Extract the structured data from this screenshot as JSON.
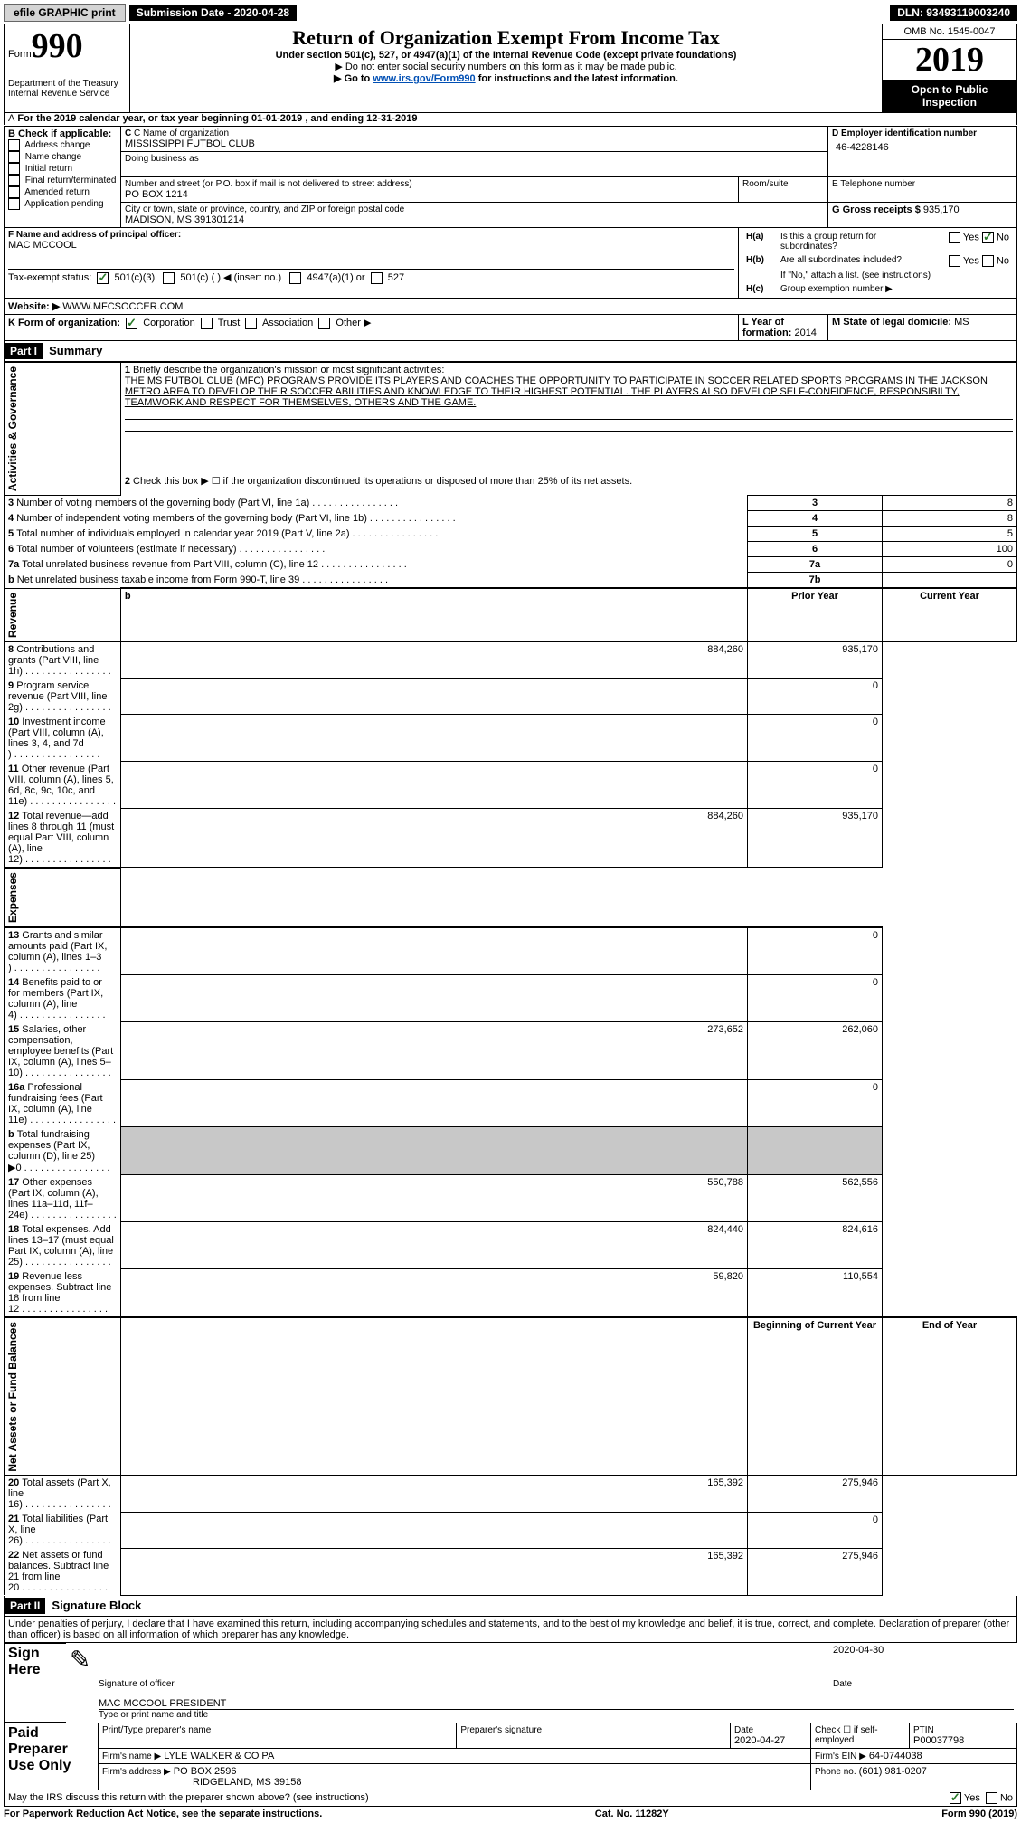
{
  "topbar": {
    "efile": "efile GRAPHIC print",
    "submission": "Submission Date - 2020-04-28",
    "dln": "DLN: 93493119003240"
  },
  "header": {
    "form_label": "Form",
    "form_no": "990",
    "dept1": "Department of the Treasury",
    "dept2": "Internal Revenue Service",
    "title": "Return of Organization Exempt From Income Tax",
    "subtitle": "Under section 501(c), 527, or 4947(a)(1) of the Internal Revenue Code (except private foundations)",
    "note1": "Do not enter social security numbers on this form as it may be made public.",
    "note2_pre": "Go to ",
    "note2_link": "www.irs.gov/Form990",
    "note2_post": " for instructions and the latest information.",
    "omb": "OMB No. 1545-0047",
    "year": "2019",
    "inspect": "Open to Public Inspection"
  },
  "periodA": "For the 2019 calendar year, or tax year beginning 01-01-2019  , and ending 12-31-2019",
  "boxB": {
    "title": "B Check if applicable:",
    "opts": [
      "Address change",
      "Name change",
      "Initial return",
      "Final return/terminated",
      "Amended return",
      "Application pending"
    ]
  },
  "boxC": {
    "name_label": "C Name of organization",
    "name": "MISSISSIPPI FUTBOL CLUB",
    "dba_label": "Doing business as",
    "street_label": "Number and street (or P.O. box if mail is not delivered to street address)",
    "street": "PO BOX 1214",
    "room_label": "Room/suite",
    "city_label": "City or town, state or province, country, and ZIP or foreign postal code",
    "city": "MADISON, MS  391301214"
  },
  "boxD": {
    "label": "D Employer identification number",
    "value": "46-4228146"
  },
  "boxE": {
    "label": "E Telephone number"
  },
  "boxG": {
    "label": "G Gross receipts $",
    "value": "935,170"
  },
  "boxF": {
    "label": "F  Name and address of principal officer:",
    "name": "MAC MCCOOL"
  },
  "boxH": {
    "ha": "Is this a group return for subordinates?",
    "hb": "Are all subordinates included?",
    "hb_note": "If \"No,\" attach a list. (see instructions)",
    "hc": "Group exemption number ▶"
  },
  "taxExempt": {
    "label": "Tax-exempt status:",
    "o1": "501(c)(3)",
    "o2": "501(c) (  ) ◀ (insert no.)",
    "o3": "4947(a)(1) or",
    "o4": "527"
  },
  "boxJ": {
    "label": "J ",
    "website_label": "Website: ▶",
    "website": "WWW.MFCSOCCER.COM"
  },
  "boxK": {
    "label": "K Form of organization:",
    "o1": "Corporation",
    "o2": "Trust",
    "o3": "Association",
    "o4": "Other ▶"
  },
  "boxL": {
    "label": "L Year of formation:",
    "value": "2014"
  },
  "boxM": {
    "label": "M State of legal domicile:",
    "value": "MS"
  },
  "partI": {
    "header": "Part I",
    "title": "Summary"
  },
  "summary": {
    "q1_label": "Briefly describe the organization's mission or most significant activities:",
    "q1_text": "THE MS FUTBOL CLUB (MFC) PROGRAMS PROVIDE ITS PLAYERS AND COACHES THE OPPORTUNITY TO PARTICIPATE IN SOCCER RELATED SPORTS PROGRAMS IN THE JACKSON METRO AREA TO DEVELOP THEIR SOCCER ABILITIES AND KNOWLEDGE TO THEIR HIGHEST POTENTIAL. THE PLAYERS ALSO DEVELOP SELF-CONFIDENCE, RESPONSIBILTY, TEAMWORK AND RESPECT FOR THEMSELVES, OTHERS AND THE GAME.",
    "q2": "Check this box ▶ ☐  if the organization discontinued its operations or disposed of more than 25% of its net assets.",
    "rows_ag": [
      {
        "n": "3",
        "t": "Number of voting members of the governing body (Part VI, line 1a)",
        "v": "8"
      },
      {
        "n": "4",
        "t": "Number of independent voting members of the governing body (Part VI, line 1b)",
        "v": "8"
      },
      {
        "n": "5",
        "t": "Total number of individuals employed in calendar year 2019 (Part V, line 2a)",
        "v": "5"
      },
      {
        "n": "6",
        "t": "Total number of volunteers (estimate if necessary)",
        "v": "100"
      },
      {
        "n": "7a",
        "t": "Total unrelated business revenue from Part VIII, column (C), line 12",
        "v": "0"
      },
      {
        "n": "b",
        "t": "Net unrelated business taxable income from Form 990-T, line 39",
        "l": "7b",
        "v": ""
      }
    ],
    "col_headers": {
      "prior": "Prior Year",
      "current": "Current Year"
    },
    "rows_rev": [
      {
        "n": "8",
        "t": "Contributions and grants (Part VIII, line 1h)",
        "p": "884,260",
        "c": "935,170"
      },
      {
        "n": "9",
        "t": "Program service revenue (Part VIII, line 2g)",
        "p": "",
        "c": "0"
      },
      {
        "n": "10",
        "t": "Investment income (Part VIII, column (A), lines 3, 4, and 7d )",
        "p": "",
        "c": "0"
      },
      {
        "n": "11",
        "t": "Other revenue (Part VIII, column (A), lines 5, 6d, 8c, 9c, 10c, and 11e)",
        "p": "",
        "c": "0"
      },
      {
        "n": "12",
        "t": "Total revenue—add lines 8 through 11 (must equal Part VIII, column (A), line 12)",
        "p": "884,260",
        "c": "935,170"
      }
    ],
    "rows_exp": [
      {
        "n": "13",
        "t": "Grants and similar amounts paid (Part IX, column (A), lines 1–3 )",
        "p": "",
        "c": "0"
      },
      {
        "n": "14",
        "t": "Benefits paid to or for members (Part IX, column (A), line 4)",
        "p": "",
        "c": "0"
      },
      {
        "n": "15",
        "t": "Salaries, other compensation, employee benefits (Part IX, column (A), lines 5–10)",
        "p": "273,652",
        "c": "262,060"
      },
      {
        "n": "16a",
        "t": "Professional fundraising fees (Part IX, column (A), line 11e)",
        "p": "",
        "c": "0"
      },
      {
        "n": "b",
        "t": "Total fundraising expenses (Part IX, column (D), line 25) ▶0",
        "p": "GREY",
        "c": "GREY"
      },
      {
        "n": "17",
        "t": "Other expenses (Part IX, column (A), lines 11a–11d, 11f–24e)",
        "p": "550,788",
        "c": "562,556"
      },
      {
        "n": "18",
        "t": "Total expenses. Add lines 13–17 (must equal Part IX, column (A), line 25)",
        "p": "824,440",
        "c": "824,616"
      },
      {
        "n": "19",
        "t": "Revenue less expenses. Subtract line 18 from line 12",
        "p": "59,820",
        "c": "110,554"
      }
    ],
    "col_headers2": {
      "begin": "Beginning of Current Year",
      "end": "End of Year"
    },
    "rows_na": [
      {
        "n": "20",
        "t": "Total assets (Part X, line 16)",
        "p": "165,392",
        "c": "275,946"
      },
      {
        "n": "21",
        "t": "Total liabilities (Part X, line 26)",
        "p": "",
        "c": "0"
      },
      {
        "n": "22",
        "t": "Net assets or fund balances. Subtract line 21 from line 20",
        "p": "165,392",
        "c": "275,946"
      }
    ]
  },
  "tabs": {
    "ag": "Activities & Governance",
    "rev": "Revenue",
    "exp": "Expenses",
    "na": "Net Assets or Fund Balances"
  },
  "partII": {
    "header": "Part II",
    "title": "Signature Block"
  },
  "sig": {
    "declaration": "Under penalties of perjury, I declare that I have examined this return, including accompanying schedules and statements, and to the best of my knowledge and belief, it is true, correct, and complete. Declaration of preparer (other than officer) is based on all information of which preparer has any knowledge.",
    "sign_here": "Sign Here",
    "sig_label": "Signature of officer",
    "date_label": "Date",
    "sig_date": "2020-04-30",
    "name_title": "MAC MCCOOL PRESIDENT",
    "name_title_label": "Type or print name and title",
    "paid": "Paid Preparer Use Only",
    "prep_name_label": "Print/Type preparer's name",
    "prep_sig_label": "Preparer's signature",
    "prep_date_label": "Date",
    "prep_date": "2020-04-27",
    "check_if": "Check ☐ if self-employed",
    "ptin_label": "PTIN",
    "ptin": "P00037798",
    "firm_name_label": "Firm's name   ▶",
    "firm_name": "LYLE WALKER & CO PA",
    "firm_ein_label": "Firm's EIN ▶",
    "firm_ein": "64-0744038",
    "firm_addr_label": "Firm's address ▶",
    "firm_addr1": "PO BOX 2596",
    "firm_addr2": "RIDGELAND, MS  39158",
    "phone_label": "Phone no.",
    "phone": "(601) 981-0207",
    "discuss": "May the IRS discuss this return with the preparer shown above? (see instructions)"
  },
  "footer": {
    "paperwork": "For Paperwork Reduction Act Notice, see the separate instructions.",
    "cat": "Cat. No. 11282Y",
    "form": "Form 990 (2019)"
  }
}
